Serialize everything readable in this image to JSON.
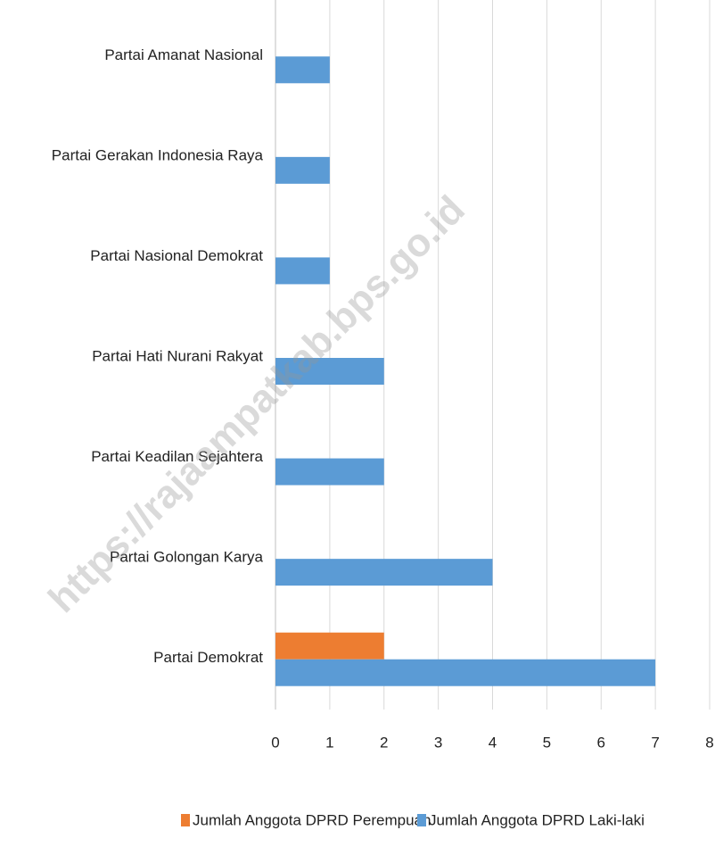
{
  "chart_data": {
    "type": "bar",
    "orientation": "horizontal",
    "categories": [
      "Partai Amanat Nasional",
      "Partai Gerakan Indonesia Raya",
      "Partai Nasional Demokrat",
      "Partai Hati Nurani Rakyat",
      "Partai Keadilan Sejahtera",
      "Partai Golongan Karya",
      "Partai Demokrat"
    ],
    "series": [
      {
        "name": "Jumlah Anggota DPRD Perempuan",
        "color": "#ed7d31",
        "values": [
          0,
          0,
          0,
          0,
          0,
          0,
          2
        ]
      },
      {
        "name": "Jumlah Anggota DPRD Laki-laki",
        "color": "#5b9bd5",
        "values": [
          1,
          1,
          1,
          2,
          2,
          4,
          7
        ]
      }
    ],
    "xlim": [
      0,
      8
    ],
    "xticks": [
      0,
      1,
      2,
      3,
      4,
      5,
      6,
      7,
      8
    ],
    "grid": true,
    "legend": "bottom",
    "watermark": "https://rajaampatkab.bps.go.id"
  }
}
